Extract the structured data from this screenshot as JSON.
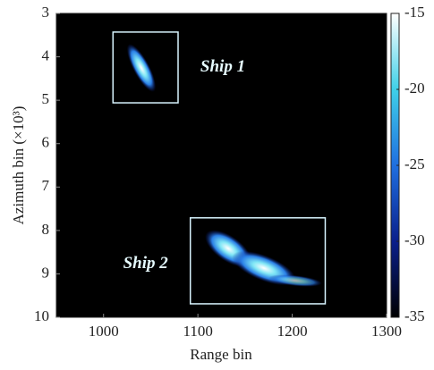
{
  "chart_data": {
    "type": "heatmap",
    "xlabel": "Range bin",
    "ylabel": "Azimuth bin (×10³)",
    "xlim": [
      950,
      1300
    ],
    "xticks": [
      1000,
      1100,
      1200,
      1300
    ],
    "ylim": [
      3,
      10
    ],
    "yticks": [
      3,
      4,
      5,
      6,
      7,
      8,
      9,
      10
    ],
    "clim": [
      -35,
      -15
    ],
    "cticks": [
      -15,
      -20,
      -25,
      -30,
      -35
    ],
    "colormap": [
      "#000000",
      "#0a1f8c",
      "#1f6fe0",
      "#3fd0e8",
      "#ffffff"
    ],
    "annotations": [
      {
        "text": "Ship 1",
        "xrange": [
          1010,
          1079
        ],
        "yrange": [
          3.43,
          5.06
        ]
      },
      {
        "text": "Ship 2",
        "xrange": [
          1092,
          1235
        ],
        "yrange": [
          7.71,
          9.69
        ]
      }
    ]
  }
}
